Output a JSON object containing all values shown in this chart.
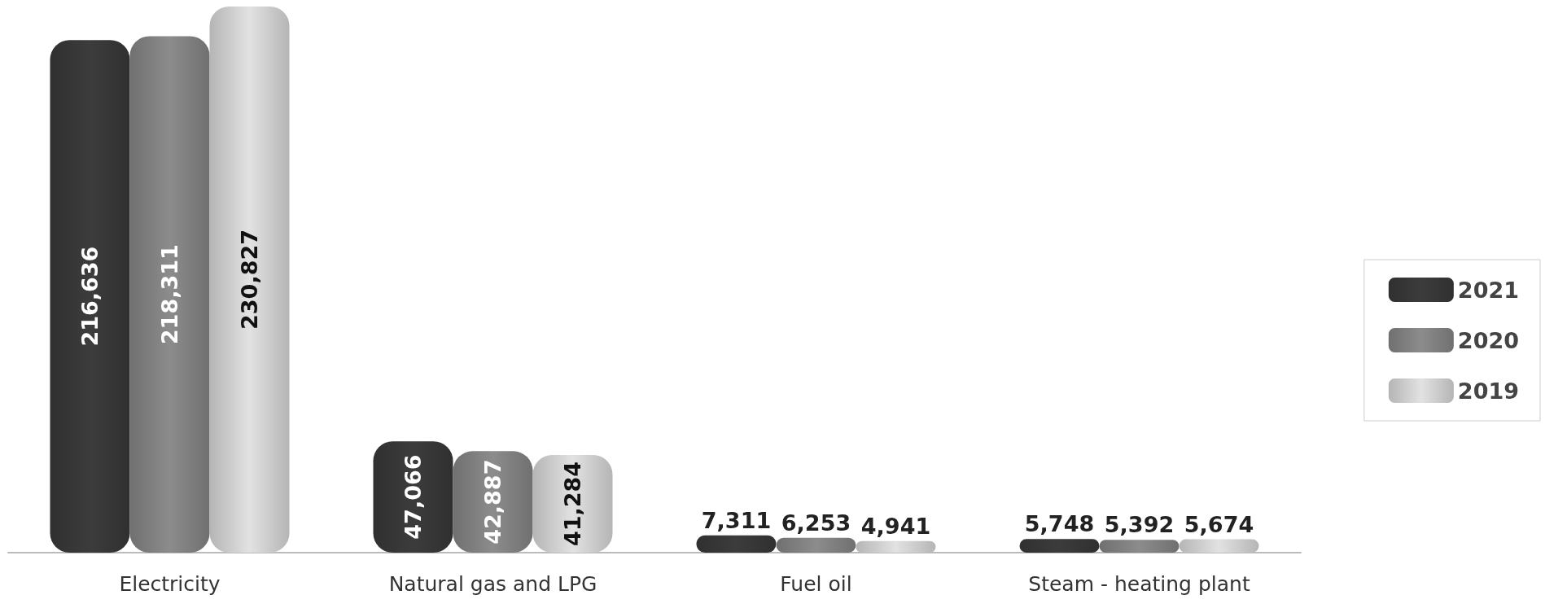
{
  "chart_data": {
    "type": "bar",
    "categories": [
      "Electricity",
      "Natural gas and LPG",
      "Fuel oil",
      "Steam - heating plant"
    ],
    "series": [
      {
        "name": "2021",
        "color": "#3c3c3c",
        "values": [
          216636,
          47066,
          7311,
          5748
        ],
        "value_labels": [
          "216,636",
          "47,066",
          "7,311",
          "5,748"
        ]
      },
      {
        "name": "2020",
        "color": "#8c8c8c",
        "values": [
          218311,
          42887,
          6253,
          5392
        ],
        "value_labels": [
          "218,311",
          "42,887",
          "6,253",
          "5,392"
        ]
      },
      {
        "name": "2019",
        "color": "#e2e2e2",
        "values": [
          230827,
          41284,
          4941,
          5674
        ],
        "value_labels": [
          "230,827",
          "41,284",
          "4,941",
          "5,674"
        ]
      }
    ],
    "legend": "bottom right"
  }
}
